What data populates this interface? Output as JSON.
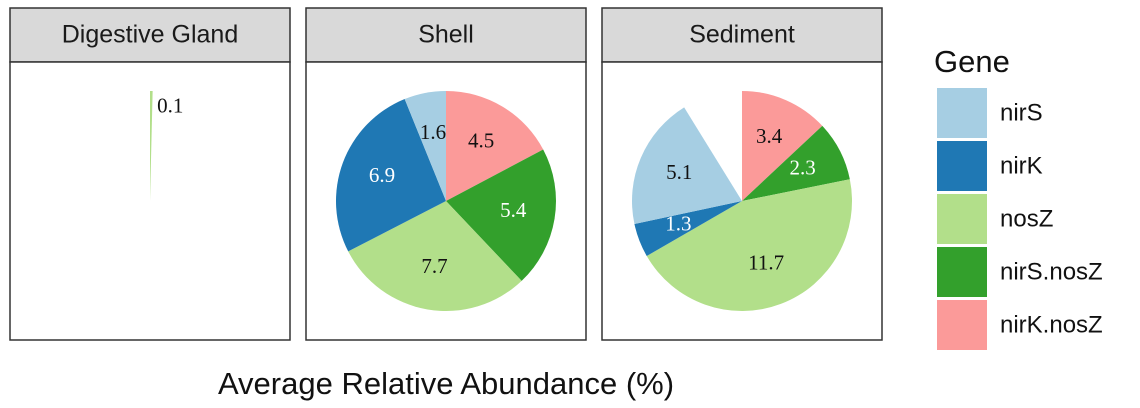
{
  "chart_data": {
    "type": "pie",
    "x_label": "Average Relative Abundance (%)",
    "legend_title": "Gene",
    "series": [
      {
        "name": "nirS",
        "color": "#a6cee3"
      },
      {
        "name": "nirK",
        "color": "#1f78b4"
      },
      {
        "name": "nosZ",
        "color": "#b2df8a"
      },
      {
        "name": "nirS.nosZ",
        "color": "#33a02c"
      },
      {
        "name": "nirK.nosZ",
        "color": "#fb9a99"
      }
    ],
    "facets": [
      {
        "title": "Digestive Gland",
        "values": [
          null,
          null,
          0.1,
          null,
          null
        ]
      },
      {
        "title": "Shell",
        "values": [
          1.6,
          6.9,
          7.7,
          5.4,
          4.5
        ]
      },
      {
        "title": "Sediment",
        "values": [
          5.1,
          1.3,
          11.7,
          2.3,
          3.4
        ]
      }
    ]
  }
}
